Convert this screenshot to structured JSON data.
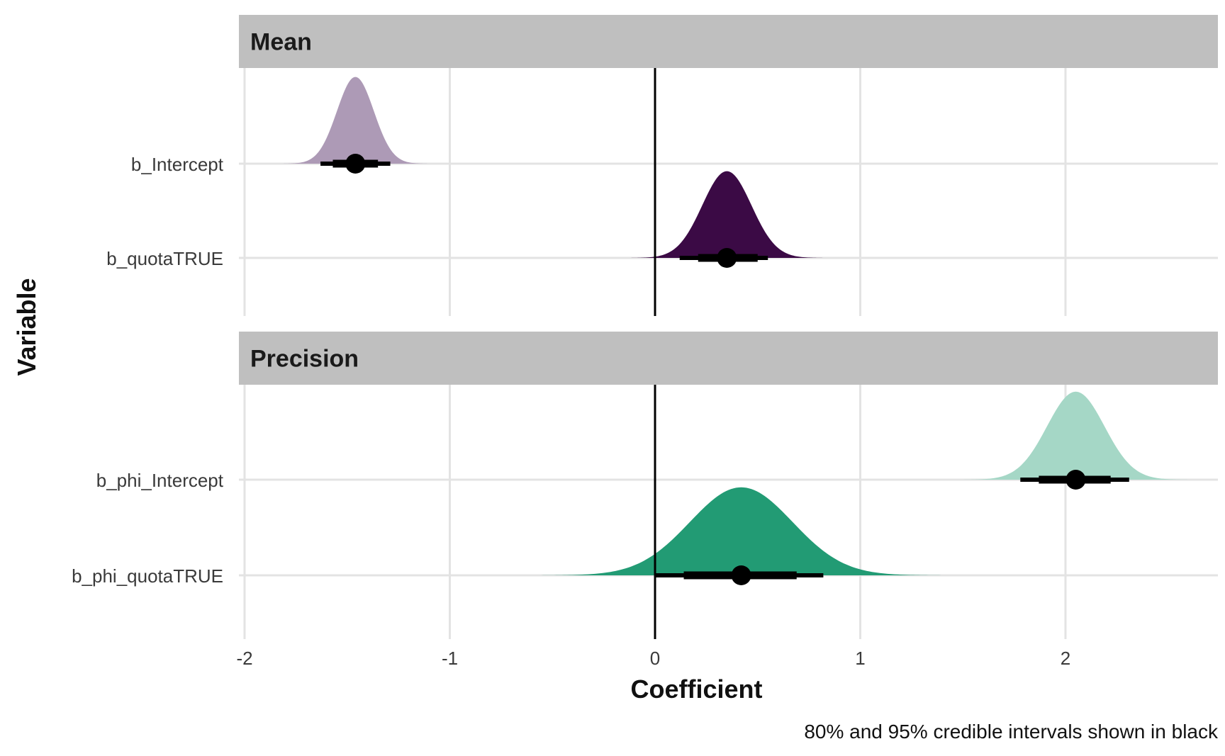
{
  "chart_data": {
    "type": "ridgeline-interval",
    "xlabel": "Coefficient",
    "ylabel": "Variable",
    "caption": "80% and 95% credible intervals shown in black",
    "xlim": [
      -2.05,
      2.7
    ],
    "xticks": [
      -2,
      -1,
      0,
      1,
      2
    ],
    "xtick_labels": [
      "-2",
      "-1",
      "0",
      "1",
      "2"
    ],
    "reference_line_x": 0,
    "grid": true,
    "colors": {
      "strip": "#bfbfbf",
      "grid": "#e3e3e3",
      "interval": "#000000",
      "reference": "#000000"
    },
    "facets": [
      {
        "name": "Mean",
        "variables": [
          {
            "name": "b_Intercept",
            "color": "#ad9ab6",
            "mean": -1.46,
            "sd": 0.09,
            "point": -1.46,
            "interval_80": [
              -1.57,
              -1.35
            ],
            "interval_95": [
              -1.63,
              -1.29
            ]
          },
          {
            "name": "b_quotaTRUE",
            "color": "#3b0a45",
            "mean": 0.35,
            "sd": 0.12,
            "point": 0.35,
            "interval_80": [
              0.21,
              0.5
            ],
            "interval_95": [
              0.12,
              0.55
            ]
          }
        ]
      },
      {
        "name": "Precision",
        "variables": [
          {
            "name": "b_phi_Intercept",
            "color": "#a5d7c6",
            "mean": 2.05,
            "sd": 0.14,
            "point": 2.05,
            "interval_80": [
              1.87,
              2.22
            ],
            "interval_95": [
              1.78,
              2.31
            ]
          },
          {
            "name": "b_phi_quotaTRUE",
            "color": "#229b74",
            "mean": 0.42,
            "sd": 0.25,
            "point": 0.42,
            "interval_80": [
              0.14,
              0.69
            ],
            "interval_95": [
              0.0,
              0.82
            ]
          }
        ]
      }
    ]
  }
}
